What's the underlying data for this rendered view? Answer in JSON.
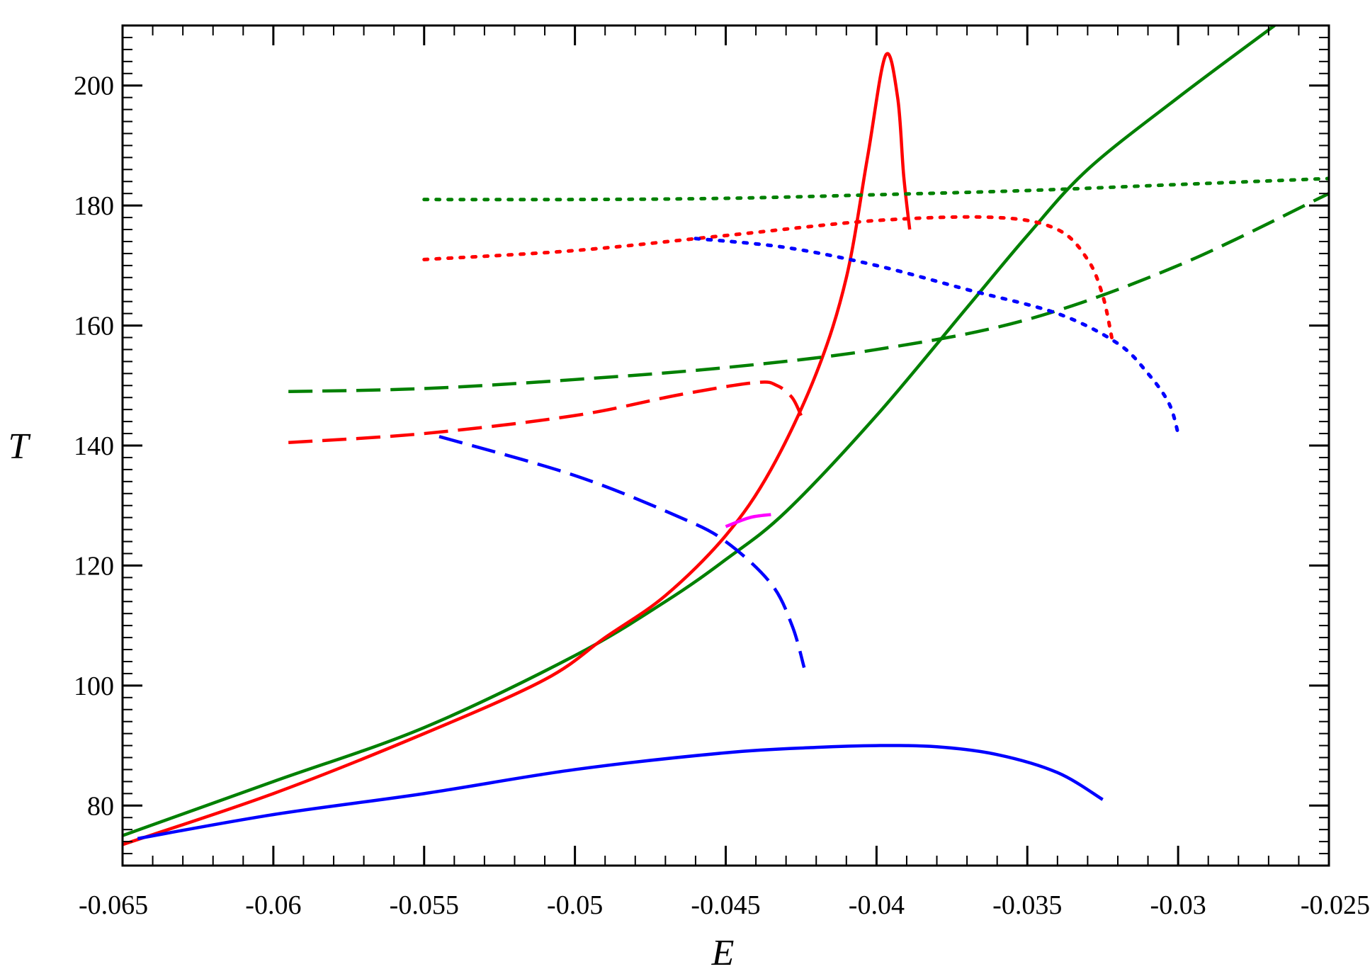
{
  "chart_data": {
    "type": "line",
    "title": "",
    "xlabel": "E",
    "ylabel": "T",
    "xlim": [
      -0.065,
      -0.025
    ],
    "ylim": [
      70,
      210
    ],
    "grid": false,
    "legend": "none",
    "x_ticks": [
      -0.065,
      -0.06,
      -0.055,
      -0.05,
      -0.045,
      -0.04,
      -0.035,
      -0.03,
      -0.025
    ],
    "x_tick_labels": [
      "-0.065",
      "-0.06",
      "-0.055",
      "-0.05",
      "-0.045",
      "-0.04",
      "-0.035",
      "-0.03",
      "-0.025"
    ],
    "y_ticks": [
      80,
      100,
      120,
      140,
      160,
      180,
      200
    ],
    "y_tick_labels": [
      "80",
      "100",
      "120",
      "140",
      "160",
      "180",
      "200"
    ],
    "series": [
      {
        "color": "#008000",
        "style": "solid",
        "x": [
          -0.065,
          -0.06,
          -0.055,
          -0.05,
          -0.047,
          -0.045,
          -0.043,
          -0.04,
          -0.037,
          -0.035,
          -0.033,
          -0.03,
          -0.0268
        ],
        "y": [
          75,
          84,
          93,
          105,
          114,
          121,
          129,
          145,
          163,
          175,
          186,
          198,
          210
        ]
      },
      {
        "color": "#ff0000",
        "style": "solid",
        "x": [
          -0.065,
          -0.06,
          -0.055,
          -0.051,
          -0.049,
          -0.047,
          -0.045,
          -0.0435,
          -0.042,
          -0.041,
          -0.0403,
          -0.0397,
          -0.0393,
          -0.0391,
          -0.0389
        ],
        "y": [
          73.5,
          82,
          92,
          101,
          108,
          115,
          125,
          136,
          152,
          168,
          188,
          205,
          198,
          185,
          176
        ]
      },
      {
        "color": "#0000ff",
        "style": "solid",
        "x": [
          -0.0645,
          -0.06,
          -0.055,
          -0.05,
          -0.045,
          -0.042,
          -0.04,
          -0.038,
          -0.036,
          -0.034,
          -0.0325
        ],
        "y": [
          74.5,
          78.5,
          82,
          86,
          88.8,
          89.7,
          90,
          89.8,
          88.5,
          85.5,
          81
        ]
      },
      {
        "color": "#008000",
        "style": "dashed",
        "x": [
          -0.0595,
          -0.055,
          -0.05,
          -0.045,
          -0.04,
          -0.035,
          -0.03,
          -0.025
        ],
        "y": [
          149,
          149.5,
          151,
          153,
          156,
          161,
          170,
          182
        ]
      },
      {
        "color": "#ff0000",
        "style": "dashed",
        "x": [
          -0.0595,
          -0.055,
          -0.05,
          -0.0465,
          -0.044,
          -0.0433,
          -0.0428,
          -0.0425
        ],
        "y": [
          140.5,
          142,
          145,
          148.5,
          150.5,
          150,
          148,
          145
        ]
      },
      {
        "color": "#0000ff",
        "style": "dashed",
        "x": [
          -0.0545,
          -0.05,
          -0.0465,
          -0.045,
          -0.0435,
          -0.0428,
          -0.0424
        ],
        "y": [
          141.5,
          135,
          128,
          124,
          117,
          110,
          103
        ]
      },
      {
        "color": "#008000",
        "style": "dotted",
        "x": [
          -0.055,
          -0.05,
          -0.045,
          -0.04,
          -0.035,
          -0.03,
          -0.025
        ],
        "y": [
          181,
          181,
          181.2,
          181.8,
          182.5,
          183.5,
          184.5
        ]
      },
      {
        "color": "#ff0000",
        "style": "dotted",
        "x": [
          -0.055,
          -0.05,
          -0.045,
          -0.04,
          -0.036,
          -0.034,
          -0.033,
          -0.0325,
          -0.0322
        ],
        "y": [
          171,
          172.5,
          175,
          177.5,
          178,
          176,
          171,
          165,
          158
        ]
      },
      {
        "color": "#0000ff",
        "style": "dotted",
        "x": [
          -0.046,
          -0.043,
          -0.04,
          -0.037,
          -0.034,
          -0.032,
          -0.031,
          -0.0303,
          -0.03
        ],
        "y": [
          174.5,
          173,
          170,
          166,
          162,
          157,
          152,
          147,
          142
        ]
      },
      {
        "color": "#ff00ff",
        "style": "solid",
        "x": [
          -0.045,
          -0.0442,
          -0.0435
        ],
        "y": [
          126.5,
          128,
          128.5
        ]
      }
    ]
  }
}
